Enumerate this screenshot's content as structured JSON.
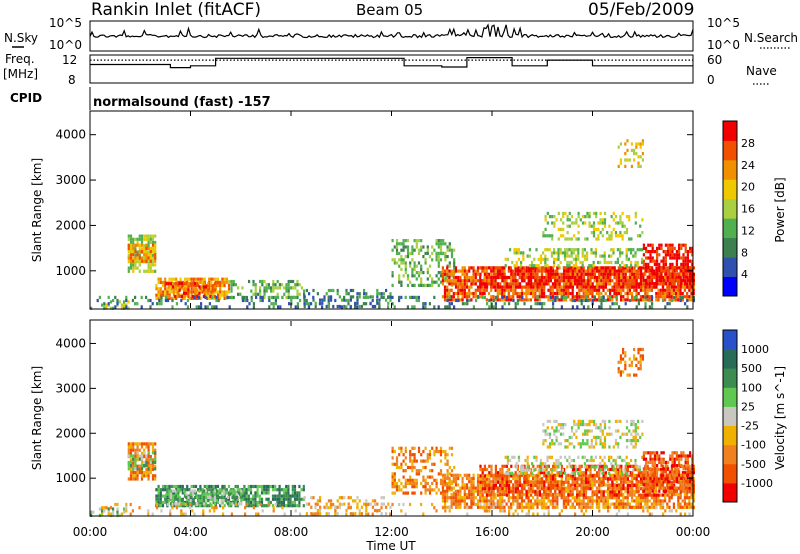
{
  "header": {
    "title": "Rankin Inlet (fitACF)",
    "beam": "Beam 05",
    "date": "05/Feb/2009"
  },
  "side_labels": {
    "nsky": "N.Sky",
    "nsearch": "N.Search",
    "freq": "Freq.",
    "mhz": "[MHz]",
    "nave": "Nave",
    "cpid": "CPID"
  },
  "cpid_text": "normalsound (fast) -157",
  "xaxis": {
    "label": "Time UT",
    "ticks": [
      "00:00",
      "04:00",
      "08:00",
      "12:00",
      "16:00",
      "20:00",
      "00:00"
    ],
    "range_hours": [
      0,
      24
    ]
  },
  "yaxis": {
    "label": "Slant Range [km]",
    "ticks": [
      "1000",
      "2000",
      "3000",
      "4000"
    ],
    "range_km": [
      180,
      4500
    ]
  },
  "noise_axes": {
    "left_ticks": [
      "10^5",
      "10^0"
    ],
    "right_ticks": [
      "10^5",
      "10^0"
    ]
  },
  "freq_axes": {
    "left_ticks": [
      "12",
      "8"
    ],
    "right_ticks": [
      "60",
      "0"
    ]
  },
  "chart_data": [
    {
      "type": "heatmap",
      "title": "Power",
      "colorbar_label": "Power [dB]",
      "colorbar_ticks": [
        "4",
        "8",
        "12",
        "16",
        "20",
        "24",
        "28"
      ],
      "colorscale": [
        "#0000ff",
        "#3050b0",
        "#3d8050",
        "#50b050",
        "#a8d040",
        "#f0c800",
        "#f09000",
        "#f05000",
        "#f00000"
      ],
      "x_label": "Time UT",
      "y_label": "Slant Range [km]",
      "x_range_hours": [
        0,
        24
      ],
      "y_range_km": [
        180,
        4500
      ],
      "regions": [
        {
          "t": [
            0.0,
            1.5
          ],
          "r": [
            200,
            350
          ],
          "level": 4,
          "density": 0.35
        },
        {
          "t": [
            1.5,
            2.6
          ],
          "r": [
            1000,
            1800
          ],
          "level": 4,
          "density": 0.75
        },
        {
          "t": [
            1.5,
            2.6
          ],
          "r": [
            1200,
            1600
          ],
          "level": 6,
          "density": 0.6
        },
        {
          "t": [
            2.6,
            5.5
          ],
          "r": [
            380,
            850
          ],
          "level": 6,
          "density": 0.8
        },
        {
          "t": [
            3.0,
            5.0
          ],
          "r": [
            450,
            750
          ],
          "level": 7,
          "density": 0.55
        },
        {
          "t": [
            5.5,
            8.5
          ],
          "r": [
            400,
            800
          ],
          "level": 3,
          "density": 0.45
        },
        {
          "t": [
            8.5,
            12.0
          ],
          "r": [
            200,
            600
          ],
          "level": 2,
          "density": 0.35
        },
        {
          "t": [
            12.0,
            14.5
          ],
          "r": [
            700,
            1700
          ],
          "level": 3,
          "density": 0.45
        },
        {
          "t": [
            14.0,
            24.0
          ],
          "r": [
            350,
            1100
          ],
          "level": 7,
          "density": 0.75
        },
        {
          "t": [
            15.5,
            24.0
          ],
          "r": [
            650,
            1100
          ],
          "level": 8,
          "density": 0.55
        },
        {
          "t": [
            16.5,
            22.0
          ],
          "r": [
            1100,
            1500
          ],
          "level": 4,
          "density": 0.4
        },
        {
          "t": [
            18.0,
            22.0
          ],
          "r": [
            1700,
            2300
          ],
          "level": 4,
          "density": 0.35
        },
        {
          "t": [
            21.0,
            22.0
          ],
          "r": [
            3300,
            3900
          ],
          "level": 5,
          "density": 0.4
        },
        {
          "t": [
            22.0,
            24.0
          ],
          "r": [
            700,
            1600
          ],
          "level": 8,
          "density": 0.65
        },
        {
          "t": [
            0.0,
            24.0
          ],
          "r": [
            180,
            450
          ],
          "level": 2,
          "density": 0.25
        }
      ]
    },
    {
      "type": "heatmap",
      "title": "Velocity",
      "colorbar_label": "Velocity [m s^-1]",
      "colorbar_ticks": [
        "1000",
        "500",
        "100",
        "25",
        "-25",
        "-100",
        "-500",
        "-1000"
      ],
      "colorscale": [
        "#2850c8",
        "#286c58",
        "#3c8c50",
        "#5fc850",
        "#c8c8c0",
        "#f0b000",
        "#f08020",
        "#f05000",
        "#f00000"
      ],
      "x_label": "Time UT",
      "y_label": "Slant Range [km]",
      "x_range_hours": [
        0,
        24
      ],
      "y_range_km": [
        180,
        4500
      ],
      "regions": [
        {
          "t": [
            0.0,
            1.5
          ],
          "r": [
            200,
            350
          ],
          "level": 3,
          "density": 0.35
        },
        {
          "t": [
            1.5,
            2.6
          ],
          "r": [
            1000,
            1800
          ],
          "level": 6,
          "density": 0.7
        },
        {
          "t": [
            1.5,
            2.6
          ],
          "r": [
            1200,
            1600
          ],
          "level": 3,
          "density": 0.5
        },
        {
          "t": [
            2.6,
            8.5
          ],
          "r": [
            380,
            850
          ],
          "level": 2,
          "density": 0.75
        },
        {
          "t": [
            3.0,
            6.0
          ],
          "r": [
            450,
            750
          ],
          "level": 3,
          "density": 0.5
        },
        {
          "t": [
            8.5,
            12.0
          ],
          "r": [
            200,
            600
          ],
          "level": 5,
          "density": 0.3
        },
        {
          "t": [
            12.0,
            14.5
          ],
          "r": [
            700,
            1700
          ],
          "level": 6,
          "density": 0.45
        },
        {
          "t": [
            14.0,
            24.0
          ],
          "r": [
            350,
            1100
          ],
          "level": 6,
          "density": 0.75
        },
        {
          "t": [
            15.5,
            24.0
          ],
          "r": [
            650,
            1300
          ],
          "level": 7,
          "density": 0.55
        },
        {
          "t": [
            16.5,
            22.0
          ],
          "r": [
            1100,
            1500
          ],
          "level": 4,
          "density": 0.35
        },
        {
          "t": [
            18.0,
            22.0
          ],
          "r": [
            1700,
            2300
          ],
          "level": 4,
          "density": 0.35
        },
        {
          "t": [
            21.0,
            22.0
          ],
          "r": [
            3300,
            3900
          ],
          "level": 6,
          "density": 0.4
        },
        {
          "t": [
            22.0,
            24.0
          ],
          "r": [
            700,
            1600
          ],
          "level": 7,
          "density": 0.6
        },
        {
          "t": [
            0.0,
            24.0
          ],
          "r": [
            180,
            450
          ],
          "level": 5,
          "density": 0.2
        }
      ]
    }
  ],
  "freq_series": {
    "frequency_mhz": [
      {
        "t": [
          0.0,
          3.2
        ],
        "v": 10.8
      },
      {
        "t": [
          3.2,
          4.0
        ],
        "v": 10.3
      },
      {
        "t": [
          4.0,
          5.0
        ],
        "v": 10.6
      },
      {
        "t": [
          5.0,
          9.0
        ],
        "v": 11.8
      },
      {
        "t": [
          9.0,
          12.5
        ],
        "v": 11.8
      },
      {
        "t": [
          12.5,
          14.0
        ],
        "v": 10.6
      },
      {
        "t": [
          14.0,
          15.0
        ],
        "v": 10.4
      },
      {
        "t": [
          15.0,
          16.8
        ],
        "v": 11.9
      },
      {
        "t": [
          16.8,
          18.2
        ],
        "v": 10.6
      },
      {
        "t": [
          18.2,
          20.0
        ],
        "v": 11.5
      },
      {
        "t": [
          20.0,
          24.0
        ],
        "v": 10.6
      }
    ],
    "nave_dotted": 11.5
  }
}
